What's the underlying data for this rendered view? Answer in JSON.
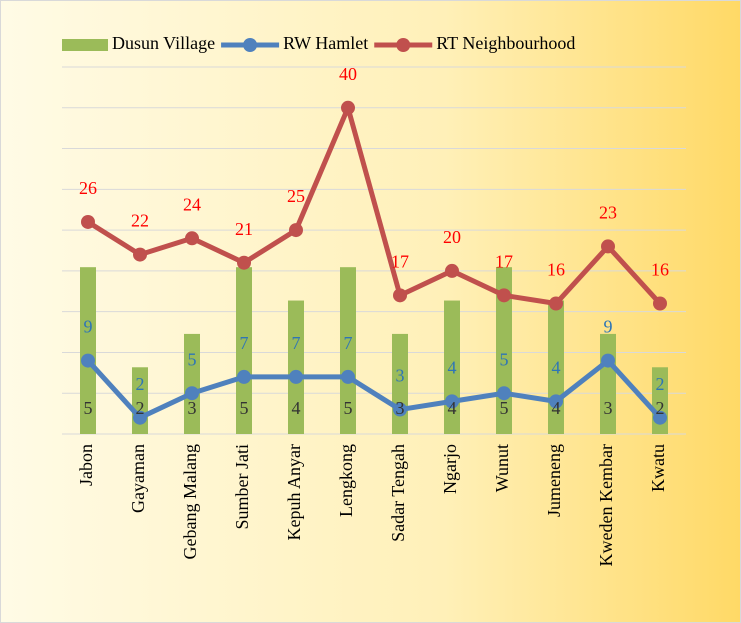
{
  "chart_data": {
    "type": "combo",
    "categories": [
      "Jabon",
      "Gayaman",
      "Gebang Malang",
      "Sumber Jati",
      "Kepuh Anyar",
      "Lengkong",
      "Sadar Tengah",
      "Ngarjo",
      "Wunut",
      "Jumeneng",
      "Kweden Kembar",
      "Kwatu"
    ],
    "series": [
      {
        "name": "Dusun Village",
        "type": "bar",
        "axis": "y2",
        "color": "#9bbb59",
        "label_color": "#333333",
        "values": [
          5,
          2,
          3,
          5,
          4,
          5,
          3,
          4,
          5,
          4,
          3,
          2
        ]
      },
      {
        "name": "RW Hamlet",
        "type": "line",
        "color": "#4f81bd",
        "label_color": "#2e75b6",
        "values": [
          9,
          2,
          5,
          7,
          7,
          7,
          3,
          4,
          5,
          4,
          9,
          2
        ]
      },
      {
        "name": "RT Neighbourhood",
        "type": "line",
        "color": "#c0504d",
        "label_color": "#ff0000",
        "values": [
          26,
          22,
          24,
          21,
          25,
          40,
          17,
          20,
          17,
          16,
          23,
          16
        ]
      }
    ],
    "ylim": [
      0,
      45
    ],
    "yticks": [
      0,
      5,
      10,
      15,
      20,
      25,
      30,
      35,
      40,
      45
    ],
    "y2lim": [
      0,
      11
    ],
    "grid": true,
    "legend": "top"
  }
}
